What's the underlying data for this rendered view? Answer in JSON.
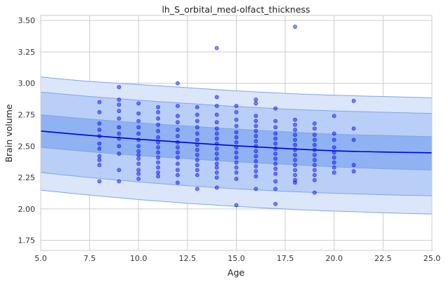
{
  "chart_data": {
    "type": "scatter",
    "title": "lh_S_orbital_med-olfact_thickness",
    "xlabel": "Age",
    "ylabel": "Brain volume",
    "xlim": [
      5,
      25
    ],
    "ylim": [
      1.67,
      3.54
    ],
    "x_ticks": [
      "5.0",
      "7.5",
      "10.0",
      "12.5",
      "15.0",
      "17.5",
      "20.0",
      "22.5",
      "25.0"
    ],
    "y_ticks": [
      "1.75",
      "2.00",
      "2.25",
      "2.50",
      "2.75",
      "3.00",
      "3.25",
      "3.50"
    ],
    "grid": true,
    "colors": {
      "points": "#0000ff",
      "median_line": "#0000dd",
      "band_outer": "#dbe6fb",
      "band_middle": "#b9cff7",
      "band_inner": "#8fb2f2",
      "band_edge": "#7ea6e6"
    },
    "median_curve": {
      "x": [
        5,
        7.5,
        10,
        12.5,
        15,
        17.5,
        20,
        22.5,
        25
      ],
      "y": [
        2.62,
        2.585,
        2.555,
        2.528,
        2.503,
        2.481,
        2.463,
        2.453,
        2.447
      ]
    },
    "centile_bands": [
      {
        "lower": [
          2.15,
          2.11,
          2.075,
          2.045,
          2.02,
          1.999,
          1.983,
          1.97,
          1.96
        ],
        "upper": [
          3.05,
          3.015,
          2.99,
          2.965,
          2.94,
          2.92,
          2.905,
          2.895,
          2.885
        ]
      },
      {
        "lower": [
          2.29,
          2.25,
          2.215,
          2.185,
          2.16,
          2.14,
          2.125,
          2.113,
          2.105
        ],
        "upper": [
          2.93,
          2.895,
          2.865,
          2.84,
          2.815,
          2.795,
          2.78,
          2.77,
          2.76
        ]
      },
      {
        "lower": [
          2.49,
          2.455,
          2.425,
          2.4,
          2.375,
          2.355,
          2.335,
          2.32,
          2.31
        ],
        "upper": [
          2.75,
          2.715,
          2.685,
          2.66,
          2.635,
          2.615,
          2.595,
          2.585,
          2.575
        ]
      }
    ],
    "points": [
      [
        8,
        2.22
      ],
      [
        8,
        2.35
      ],
      [
        8,
        2.39
      ],
      [
        8,
        2.42
      ],
      [
        8,
        2.48
      ],
      [
        8,
        2.52
      ],
      [
        8,
        2.58
      ],
      [
        8,
        2.63
      ],
      [
        8,
        2.68
      ],
      [
        8,
        2.77
      ],
      [
        8,
        2.85
      ],
      [
        9,
        2.22
      ],
      [
        9,
        2.31
      ],
      [
        9,
        2.44
      ],
      [
        9,
        2.5
      ],
      [
        9,
        2.56
      ],
      [
        9,
        2.6
      ],
      [
        9,
        2.65
      ],
      [
        9,
        2.72
      ],
      [
        9,
        2.78
      ],
      [
        9,
        2.83
      ],
      [
        9,
        2.87
      ],
      [
        9,
        2.97
      ],
      [
        10,
        2.24
      ],
      [
        10,
        2.28
      ],
      [
        10,
        2.31
      ],
      [
        10,
        2.36
      ],
      [
        10,
        2.4
      ],
      [
        10,
        2.43
      ],
      [
        10,
        2.46
      ],
      [
        10,
        2.5
      ],
      [
        10,
        2.55
      ],
      [
        10,
        2.6
      ],
      [
        10,
        2.65
      ],
      [
        10,
        2.7
      ],
      [
        10,
        2.76
      ],
      [
        10,
        2.84
      ],
      [
        11,
        2.26
      ],
      [
        11,
        2.29
      ],
      [
        11,
        2.33
      ],
      [
        11,
        2.37
      ],
      [
        11,
        2.41
      ],
      [
        11,
        2.45
      ],
      [
        11,
        2.49
      ],
      [
        11,
        2.53
      ],
      [
        11,
        2.57
      ],
      [
        11,
        2.62
      ],
      [
        11,
        2.67
      ],
      [
        11,
        2.72
      ],
      [
        11,
        2.77
      ],
      [
        11,
        2.81
      ],
      [
        12,
        2.21
      ],
      [
        12,
        2.27
      ],
      [
        12,
        2.31
      ],
      [
        12,
        2.36
      ],
      [
        12,
        2.41
      ],
      [
        12,
        2.45
      ],
      [
        12,
        2.49
      ],
      [
        12,
        2.53
      ],
      [
        12,
        2.58
      ],
      [
        12,
        2.63
      ],
      [
        12,
        2.69
      ],
      [
        12,
        2.74
      ],
      [
        12,
        2.82
      ],
      [
        12,
        3.0
      ],
      [
        13,
        2.16
      ],
      [
        13,
        2.27
      ],
      [
        13,
        2.31
      ],
      [
        13,
        2.35
      ],
      [
        13,
        2.39
      ],
      [
        13,
        2.43
      ],
      [
        13,
        2.47
      ],
      [
        13,
        2.51
      ],
      [
        13,
        2.55
      ],
      [
        13,
        2.6
      ],
      [
        13,
        2.65
      ],
      [
        13,
        2.7
      ],
      [
        13,
        2.75
      ],
      [
        13,
        2.81
      ],
      [
        14,
        2.17
      ],
      [
        14,
        2.25
      ],
      [
        14,
        2.29
      ],
      [
        14,
        2.33
      ],
      [
        14,
        2.36
      ],
      [
        14,
        2.4
      ],
      [
        14,
        2.44
      ],
      [
        14,
        2.48
      ],
      [
        14,
        2.52
      ],
      [
        14,
        2.56
      ],
      [
        14,
        2.6
      ],
      [
        14,
        2.64
      ],
      [
        14,
        2.69
      ],
      [
        14,
        2.75
      ],
      [
        14,
        2.82
      ],
      [
        14,
        2.89
      ],
      [
        14,
        3.28
      ],
      [
        15,
        2.03
      ],
      [
        15,
        2.24
      ],
      [
        15,
        2.29
      ],
      [
        15,
        2.33
      ],
      [
        15,
        2.37
      ],
      [
        15,
        2.41
      ],
      [
        15,
        2.45
      ],
      [
        15,
        2.49
      ],
      [
        15,
        2.53
      ],
      [
        15,
        2.57
      ],
      [
        15,
        2.61
      ],
      [
        15,
        2.66
      ],
      [
        15,
        2.71
      ],
      [
        15,
        2.77
      ],
      [
        15,
        2.82
      ],
      [
        16,
        2.16
      ],
      [
        16,
        2.26
      ],
      [
        16,
        2.3
      ],
      [
        16,
        2.34
      ],
      [
        16,
        2.38
      ],
      [
        16,
        2.42
      ],
      [
        16,
        2.46
      ],
      [
        16,
        2.5
      ],
      [
        16,
        2.54
      ],
      [
        16,
        2.58
      ],
      [
        16,
        2.62
      ],
      [
        16,
        2.66
      ],
      [
        16,
        2.7
      ],
      [
        16,
        2.74
      ],
      [
        16,
        2.84
      ],
      [
        16,
        2.87
      ],
      [
        17,
        2.04
      ],
      [
        17,
        2.16
      ],
      [
        17,
        2.22
      ],
      [
        17,
        2.28
      ],
      [
        17,
        2.32
      ],
      [
        17,
        2.36
      ],
      [
        17,
        2.4
      ],
      [
        17,
        2.44
      ],
      [
        17,
        2.48
      ],
      [
        17,
        2.52
      ],
      [
        17,
        2.56
      ],
      [
        17,
        2.6
      ],
      [
        17,
        2.65
      ],
      [
        17,
        2.7
      ],
      [
        17,
        2.8
      ],
      [
        18,
        2.21
      ],
      [
        18,
        2.23
      ],
      [
        18,
        2.27
      ],
      [
        18,
        2.31
      ],
      [
        18,
        2.35
      ],
      [
        18,
        2.39
      ],
      [
        18,
        2.43
      ],
      [
        18,
        2.47
      ],
      [
        18,
        2.51
      ],
      [
        18,
        2.55
      ],
      [
        18,
        2.59
      ],
      [
        18,
        2.63
      ],
      [
        18,
        2.67
      ],
      [
        18,
        2.71
      ],
      [
        18,
        3.45
      ],
      [
        19,
        2.13
      ],
      [
        19,
        2.23
      ],
      [
        19,
        2.27
      ],
      [
        19,
        2.31
      ],
      [
        19,
        2.35
      ],
      [
        19,
        2.39
      ],
      [
        19,
        2.43
      ],
      [
        19,
        2.47
      ],
      [
        19,
        2.51
      ],
      [
        19,
        2.55
      ],
      [
        19,
        2.59
      ],
      [
        19,
        2.64
      ],
      [
        19,
        2.68
      ],
      [
        20,
        2.29
      ],
      [
        20,
        2.33
      ],
      [
        20,
        2.37
      ],
      [
        20,
        2.41
      ],
      [
        20,
        2.45
      ],
      [
        20,
        2.49
      ],
      [
        20,
        2.55
      ],
      [
        20,
        2.6
      ],
      [
        20,
        2.74
      ],
      [
        21,
        2.3
      ],
      [
        21,
        2.35
      ],
      [
        21,
        2.55
      ],
      [
        21,
        2.64
      ],
      [
        21,
        2.86
      ]
    ]
  }
}
